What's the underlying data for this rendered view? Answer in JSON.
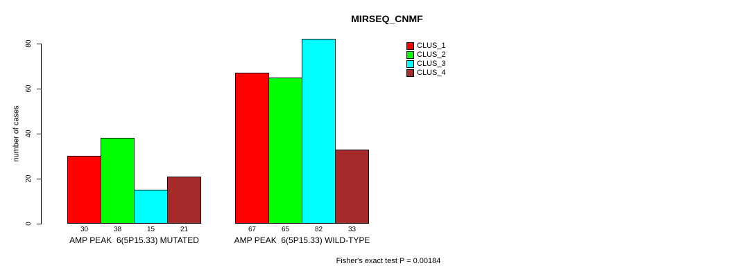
{
  "chart_data": {
    "type": "bar",
    "title": "MIRSEQ_CNMF",
    "xlabel": "",
    "ylabel": "number of cases",
    "ylim": [
      0,
      80
    ],
    "yticks": [
      0,
      20,
      40,
      60,
      80
    ],
    "grid": false,
    "categories": [
      "AMP PEAK  6(5P15.33) MUTATED",
      "AMP PEAK  6(5P15.33) WILD-TYPE"
    ],
    "series": [
      {
        "name": "CLUS_1",
        "color": "#ff0000",
        "values": [
          30,
          67
        ]
      },
      {
        "name": "CLUS_2",
        "color": "#00ff00",
        "values": [
          38,
          65
        ]
      },
      {
        "name": "CLUS_3",
        "color": "#00ffff",
        "values": [
          15,
          82
        ]
      },
      {
        "name": "CLUS_4",
        "color": "#a52a2a",
        "values": [
          21,
          33
        ]
      }
    ],
    "bar_value_labels": [
      [
        30,
        38,
        15,
        21
      ],
      [
        67,
        65,
        82,
        33
      ]
    ],
    "legend_position": "top-right",
    "annotation": "Fisher's exact test P = 0.00184"
  }
}
